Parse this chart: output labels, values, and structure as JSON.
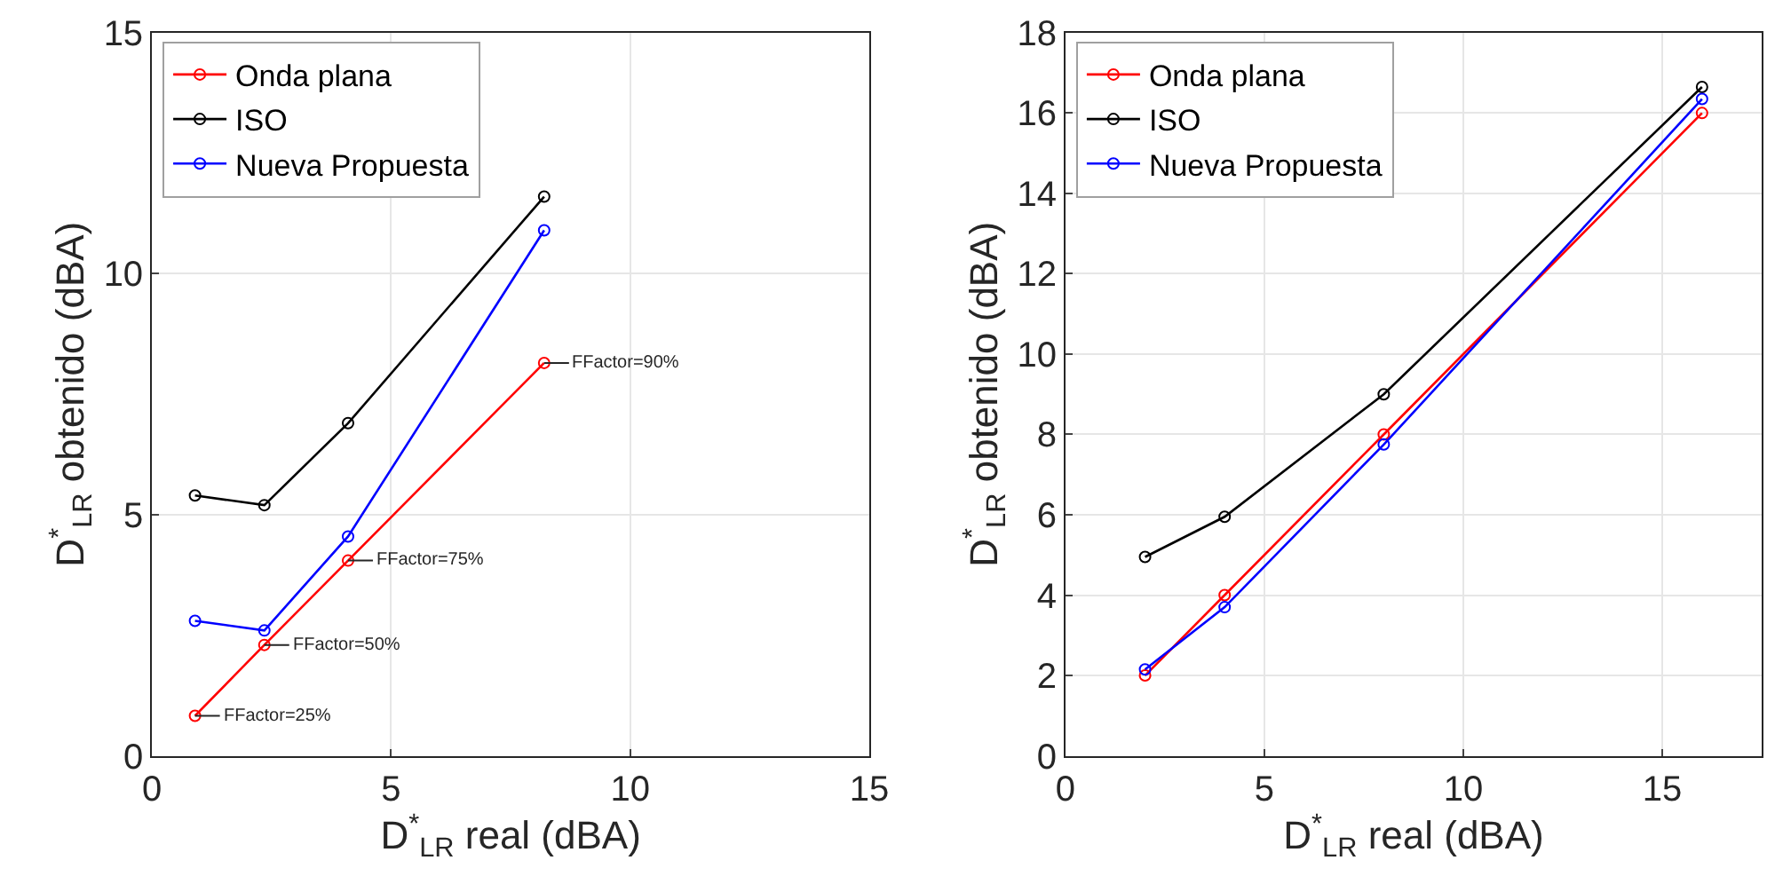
{
  "chart_data": [
    {
      "type": "line",
      "xlabel": "D$^{*}$$_{LR}$ real (dBA)",
      "ylabel": "D$^{*}$$_{LR}$ obtenido (dBA)",
      "xlim": [
        0,
        15
      ],
      "xticks": [
        0,
        5,
        10,
        15
      ],
      "ylim": [
        0,
        15
      ],
      "yticks": [
        0,
        5,
        10,
        15
      ],
      "grid": true,
      "legend": "top left",
      "marker": "circle",
      "line_style": "solid",
      "series": [
        {
          "name": "Onda plana",
          "color": "#ff0000",
          "x": [
            0.9,
            2.35,
            4.1,
            8.2
          ],
          "values": [
            0.83,
            2.3,
            4.05,
            8.15
          ]
        },
        {
          "name": "ISO",
          "color": "#000000",
          "x": [
            0.9,
            2.35,
            4.1,
            8.2
          ],
          "values": [
            5.4,
            5.2,
            6.9,
            11.6
          ]
        },
        {
          "name": "Nueva Propuesta",
          "color": "#0000ff",
          "x": [
            0.9,
            2.35,
            4.1,
            8.2
          ],
          "values": [
            2.8,
            2.6,
            4.55,
            10.9
          ]
        }
      ],
      "annotations": [
        {
          "text": "FFactor=25%",
          "x": 0.9,
          "y": 0.83
        },
        {
          "text": "FFactor=50%",
          "x": 2.35,
          "y": 2.3
        },
        {
          "text": "FFactor=75%",
          "x": 4.1,
          "y": 4.05
        },
        {
          "text": "FFactor=90%",
          "x": 8.2,
          "y": 8.15
        }
      ]
    },
    {
      "type": "line",
      "xlabel": "D$^{*}$$_{LR}$ real (dBA)",
      "ylabel": "D$^{*}$$_{LR}$ obtenido (dBA)",
      "xlim": [
        0,
        17.5
      ],
      "xticks": [
        0,
        5,
        10,
        15
      ],
      "ylim": [
        0,
        18
      ],
      "yticks": [
        0,
        2,
        4,
        6,
        8,
        10,
        12,
        14,
        16,
        18
      ],
      "grid": true,
      "legend": "top left",
      "marker": "circle",
      "line_style": "solid",
      "series": [
        {
          "name": "Onda plana",
          "color": "#ff0000",
          "x": [
            2,
            4,
            8,
            16
          ],
          "values": [
            2,
            4,
            8,
            16
          ]
        },
        {
          "name": "ISO",
          "color": "#000000",
          "x": [
            2,
            4,
            8,
            16
          ],
          "values": [
            4.95,
            5.95,
            9,
            16.65
          ]
        },
        {
          "name": "Nueva Propuesta",
          "color": "#0000ff",
          "x": [
            2,
            4,
            8,
            16
          ],
          "values": [
            2.15,
            3.7,
            7.75,
            16.35
          ]
        }
      ]
    }
  ]
}
